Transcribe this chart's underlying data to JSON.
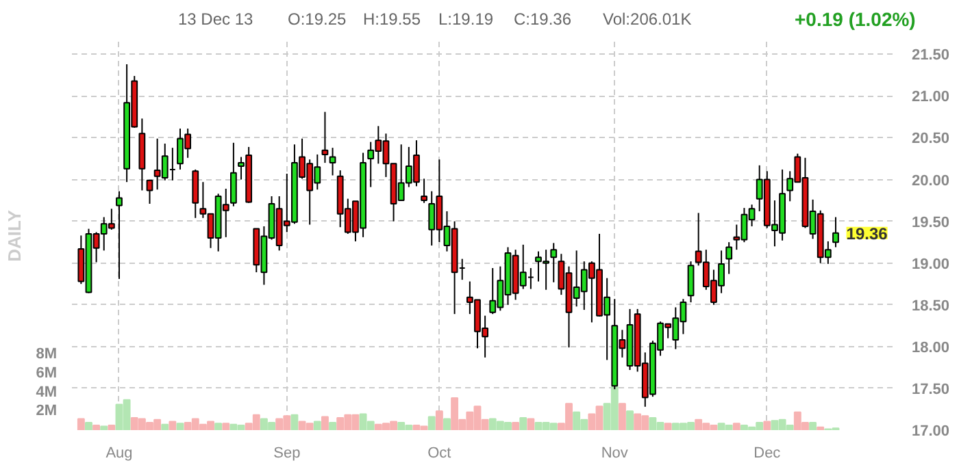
{
  "chart_data": {
    "type": "candlestick",
    "y2label": "DAILY",
    "annotations": [
      "13 Dec 13",
      "O:19.25",
      "H:19.55",
      "L:19.19",
      "C:19.36",
      "Vol:206.01K",
      "+0.19 (1.02%)",
      "19.36"
    ],
    "categories": [
      null,
      null,
      null,
      null,
      null,
      "Aug",
      null,
      null,
      null,
      null,
      null,
      null,
      null,
      null,
      null,
      null,
      null,
      null,
      null,
      null,
      null,
      null,
      null,
      null,
      null,
      null,
      null,
      "Sep",
      null,
      null,
      null,
      null,
      null,
      null,
      null,
      null,
      null,
      null,
      null,
      null,
      null,
      null,
      null,
      null,
      null,
      null,
      null,
      "Oct",
      null,
      null,
      null,
      null,
      null,
      null,
      null,
      null,
      null,
      null,
      null,
      null,
      null,
      null,
      null,
      null,
      null,
      null,
      null,
      null,
      null,
      null,
      "Nov",
      null,
      null,
      null,
      null,
      null,
      null,
      null,
      null,
      null,
      null,
      null,
      null,
      null,
      null,
      null,
      null,
      null,
      null,
      null,
      "Dec",
      null,
      null,
      null,
      null,
      null,
      null,
      null,
      null,
      null
    ],
    "colors": [
      "#dd1111",
      "#22dd22",
      "#dd1111",
      "#22dd22",
      "#dd1111",
      "#22dd22",
      "#22dd22",
      "#dd1111",
      "#dd1111",
      "#dd1111",
      "#dd1111",
      "#22dd22",
      "#000000",
      "#22dd22",
      "#dd1111",
      "#dd1111",
      "#dd1111",
      "#dd1111",
      "#22dd22",
      "#dd1111",
      "#22dd22",
      "#22dd22",
      "#dd1111",
      "#dd1111",
      "#22dd22",
      "#22dd22",
      "#dd1111",
      "#dd1111",
      "#22dd22",
      "#dd1111",
      "#dd1111",
      "#22dd22",
      "#dd1111",
      "#22dd22",
      "#dd1111",
      "#dd1111",
      "#dd1111",
      "#22dd22",
      "#22dd22",
      "#dd1111",
      "#dd1111",
      "#dd1111",
      "#22dd22",
      "#22dd22",
      "#dd1111",
      "#dd1111",
      "#22dd22",
      "#dd1111",
      "#22dd22",
      "#dd1111",
      "#000000",
      "#dd1111",
      "#dd1111",
      "#dd1111",
      "#22dd22",
      "#22dd22",
      "#22dd22",
      "#dd1111",
      "#22dd22",
      "#000000",
      "#22dd22",
      "#22dd22",
      "#22dd22",
      "#dd1111",
      "#dd1111",
      "#22dd22",
      "#22dd22",
      "#dd1111",
      "#dd1111",
      "#22dd22",
      "#22dd22",
      "#dd1111",
      "#22dd22",
      "#dd1111",
      "#dd1111",
      "#22dd22",
      "#22dd22",
      "#dd1111",
      "#22dd22",
      "#22dd22",
      "#22dd22",
      "#dd1111",
      "#dd1111",
      "#dd1111",
      "#22dd22",
      "#22dd22",
      "#dd1111",
      "#22dd22",
      "#22dd22",
      "#22dd22",
      "#dd1111",
      "#22dd22",
      "#22dd22",
      "#22dd22",
      "#dd1111",
      "#dd1111",
      "#22dd22",
      "#dd1111",
      "#22dd22",
      "#22dd22"
    ],
    "ohlc": [
      [
        19.17,
        19.33,
        18.75,
        18.78
      ],
      [
        18.65,
        19.41,
        18.64,
        19.35
      ],
      [
        19.35,
        19.37,
        19.01,
        19.18
      ],
      [
        19.35,
        19.55,
        19.15,
        19.47
      ],
      [
        19.47,
        19.65,
        19.4,
        19.42
      ],
      [
        19.69,
        19.86,
        18.81,
        19.78
      ],
      [
        20.13,
        21.38,
        19.97,
        20.92
      ],
      [
        21.18,
        21.24,
        20.62,
        20.63
      ],
      [
        20.55,
        20.73,
        19.87,
        20.13
      ],
      [
        19.99,
        19.99,
        19.71,
        19.87
      ],
      [
        20.11,
        20.49,
        19.88,
        20.04
      ],
      [
        20.02,
        20.43,
        19.99,
        20.28
      ],
      [
        20.12,
        20.38,
        19.99,
        20.12
      ],
      [
        20.19,
        20.61,
        20.12,
        20.49
      ],
      [
        20.54,
        20.61,
        20.26,
        20.37
      ],
      [
        20.1,
        20.12,
        19.54,
        19.72
      ],
      [
        19.65,
        19.97,
        19.54,
        19.59
      ],
      [
        19.59,
        19.59,
        19.18,
        19.3
      ],
      [
        19.3,
        19.83,
        19.14,
        19.8
      ],
      [
        19.7,
        19.89,
        19.31,
        19.63
      ],
      [
        19.72,
        20.44,
        19.68,
        20.08
      ],
      [
        20.16,
        20.27,
        20.0,
        20.2
      ],
      [
        20.29,
        20.39,
        19.72,
        19.73
      ],
      [
        19.41,
        19.41,
        18.89,
        18.98
      ],
      [
        18.89,
        19.44,
        18.74,
        19.32
      ],
      [
        19.3,
        19.8,
        19.28,
        19.71
      ],
      [
        19.65,
        19.8,
        19.15,
        19.21
      ],
      [
        19.5,
        20.07,
        19.37,
        19.45
      ],
      [
        19.49,
        20.42,
        19.47,
        20.2
      ],
      [
        20.27,
        20.49,
        20.01,
        20.03
      ],
      [
        20.19,
        20.24,
        19.46,
        19.87
      ],
      [
        19.96,
        20.3,
        19.88,
        20.15
      ],
      [
        20.35,
        20.81,
        20.2,
        20.3
      ],
      [
        20.2,
        20.38,
        20.05,
        20.27
      ],
      [
        20.04,
        20.11,
        19.43,
        19.59
      ],
      [
        19.65,
        19.77,
        19.35,
        19.37
      ],
      [
        19.74,
        19.74,
        19.26,
        19.37
      ],
      [
        19.42,
        20.32,
        19.31,
        20.2
      ],
      [
        20.25,
        20.45,
        19.91,
        20.35
      ],
      [
        20.47,
        20.64,
        20.19,
        20.34
      ],
      [
        20.46,
        20.55,
        20.03,
        20.19
      ],
      [
        20.19,
        20.19,
        19.5,
        19.71
      ],
      [
        19.75,
        20.42,
        19.75,
        19.96
      ],
      [
        19.96,
        20.39,
        19.91,
        20.16
      ],
      [
        20.29,
        20.47,
        19.92,
        19.97
      ],
      [
        19.8,
        20.01,
        19.72,
        19.75
      ],
      [
        19.4,
        19.86,
        19.21,
        19.71
      ],
      [
        19.8,
        20.24,
        19.25,
        19.4
      ],
      [
        19.21,
        19.62,
        19.14,
        19.44
      ],
      [
        19.41,
        19.5,
        18.39,
        18.89
      ],
      [
        18.94,
        19.05,
        18.8,
        18.94
      ],
      [
        18.59,
        18.78,
        18.39,
        18.53
      ],
      [
        18.56,
        18.56,
        17.98,
        18.18
      ],
      [
        18.22,
        18.37,
        17.87,
        18.12
      ],
      [
        18.41,
        18.94,
        18.39,
        18.55
      ],
      [
        18.47,
        18.96,
        18.43,
        18.79
      ],
      [
        18.62,
        19.19,
        18.5,
        19.12
      ],
      [
        19.09,
        19.16,
        18.56,
        18.64
      ],
      [
        18.73,
        19.22,
        18.69,
        18.89
      ],
      [
        18.83,
        18.94,
        18.69,
        18.83
      ],
      [
        19.02,
        19.14,
        18.78,
        19.07
      ],
      [
        19.0,
        19.16,
        18.68,
        19.02
      ],
      [
        19.07,
        19.24,
        18.77,
        19.16
      ],
      [
        19.02,
        19.11,
        18.62,
        18.69
      ],
      [
        18.88,
        18.96,
        17.99,
        18.41
      ],
      [
        18.58,
        19.15,
        18.48,
        18.71
      ],
      [
        18.66,
        19.02,
        18.44,
        18.92
      ],
      [
        19.0,
        19.02,
        18.29,
        18.82
      ],
      [
        18.92,
        19.35,
        18.36,
        18.37
      ],
      [
        18.38,
        18.82,
        17.84,
        18.59
      ],
      [
        17.53,
        18.57,
        17.49,
        18.25
      ],
      [
        18.08,
        18.2,
        17.87,
        17.98
      ],
      [
        17.77,
        18.45,
        17.72,
        18.26
      ],
      [
        18.39,
        18.45,
        17.7,
        17.77
      ],
      [
        17.8,
        17.93,
        17.28,
        17.39
      ],
      [
        17.43,
        18.07,
        17.4,
        18.04
      ],
      [
        17.96,
        18.3,
        17.89,
        18.28
      ],
      [
        18.27,
        18.27,
        18.1,
        18.23
      ],
      [
        18.08,
        18.47,
        17.97,
        18.34
      ],
      [
        18.3,
        18.57,
        18.15,
        18.53
      ],
      [
        18.61,
        19.02,
        18.53,
        18.97
      ],
      [
        19.14,
        19.6,
        18.97,
        19.01
      ],
      [
        19.01,
        19.16,
        18.68,
        18.72
      ],
      [
        18.79,
        18.92,
        18.5,
        18.53
      ],
      [
        18.73,
        19.15,
        18.64,
        18.99
      ],
      [
        19.05,
        19.25,
        18.87,
        19.19
      ],
      [
        19.31,
        19.46,
        19.16,
        19.28
      ],
      [
        19.28,
        19.66,
        19.25,
        19.58
      ],
      [
        19.52,
        19.7,
        19.44,
        19.65
      ],
      [
        19.77,
        20.17,
        19.62,
        20.0
      ],
      [
        20.0,
        20.1,
        19.42,
        19.45
      ],
      [
        19.39,
        19.75,
        19.2,
        19.46
      ],
      [
        19.36,
        20.12,
        19.27,
        19.83
      ],
      [
        19.87,
        20.1,
        19.74,
        20.01
      ],
      [
        20.27,
        20.31,
        19.97,
        19.97
      ],
      [
        20.02,
        20.26,
        19.42,
        19.44
      ],
      [
        19.35,
        19.76,
        19.29,
        19.62
      ],
      [
        19.59,
        19.63,
        19.0,
        19.07
      ],
      [
        19.07,
        19.26,
        18.99,
        19.16
      ],
      [
        19.25,
        19.55,
        19.19,
        19.36
      ]
    ],
    "series": [
      {
        "type": "bar",
        "axis": "y2",
        "values": [
          1.2,
          0.8,
          0.5,
          0.4,
          0.5,
          2.7,
          3.2,
          1.3,
          1.2,
          0.8,
          1.1,
          0.6,
          0.9,
          0.7,
          0.8,
          1.2,
          0.6,
          0.9,
          0.7,
          0.7,
          0.6,
          0.5,
          0.7,
          1.6,
          1.2,
          0.8,
          1.2,
          1.5,
          1.6,
          0.9,
          0.7,
          0.9,
          1.4,
          0.8,
          1.3,
          1.6,
          1.6,
          1.7,
          0.9,
          0.6,
          0.7,
          0.9,
          0.8,
          0.5,
          0.5,
          0.4,
          1.4,
          2.0,
          1.2,
          3.4,
          1.1,
          1.9,
          2.5,
          1.1,
          1.2,
          0.9,
          0.8,
          0.8,
          1.3,
          1.2,
          0.8,
          0.8,
          0.7,
          0.7,
          2.8,
          1.9,
          1.1,
          1.7,
          2.5,
          2.8,
          4.6,
          2.8,
          2.0,
          1.7,
          1.5,
          1.3,
          0.8,
          0.7,
          0.7,
          0.7,
          0.8,
          1.1,
          0.7,
          0.5,
          0.7,
          0.5,
          0.7,
          0.5,
          0.3,
          0.8,
          0.9,
          1.0,
          1.1,
          0.5,
          1.9,
          0.8,
          0.8,
          0.3,
          0.1,
          0.2
        ],
        "colors": [
          "#f7b3b3",
          "#b3e6b3",
          "#f7b3b3",
          "#b3e6b3",
          "#f7b3b3",
          "#b3e6b3",
          "#b3e6b3",
          "#f7b3b3",
          "#f7b3b3",
          "#f7b3b3",
          "#f7b3b3",
          "#b3e6b3",
          "#f7b3b3",
          "#b3e6b3",
          "#f7b3b3",
          "#f7b3b3",
          "#f7b3b3",
          "#f7b3b3",
          "#b3e6b3",
          "#f7b3b3",
          "#b3e6b3",
          "#b3e6b3",
          "#f7b3b3",
          "#f7b3b3",
          "#b3e6b3",
          "#b3e6b3",
          "#f7b3b3",
          "#f7b3b3",
          "#b3e6b3",
          "#f7b3b3",
          "#f7b3b3",
          "#b3e6b3",
          "#f7b3b3",
          "#b3e6b3",
          "#f7b3b3",
          "#f7b3b3",
          "#f7b3b3",
          "#b3e6b3",
          "#b3e6b3",
          "#f7b3b3",
          "#f7b3b3",
          "#f7b3b3",
          "#b3e6b3",
          "#b3e6b3",
          "#f7b3b3",
          "#f7b3b3",
          "#b3e6b3",
          "#f7b3b3",
          "#b3e6b3",
          "#f7b3b3",
          "#f7b3b3",
          "#f7b3b3",
          "#f7b3b3",
          "#f7b3b3",
          "#b3e6b3",
          "#b3e6b3",
          "#b3e6b3",
          "#f7b3b3",
          "#b3e6b3",
          "#f7b3b3",
          "#b3e6b3",
          "#b3e6b3",
          "#b3e6b3",
          "#f7b3b3",
          "#f7b3b3",
          "#b3e6b3",
          "#b3e6b3",
          "#f7b3b3",
          "#f7b3b3",
          "#b3e6b3",
          "#b3e6b3",
          "#f7b3b3",
          "#b3e6b3",
          "#f7b3b3",
          "#f7b3b3",
          "#b3e6b3",
          "#b3e6b3",
          "#f7b3b3",
          "#b3e6b3",
          "#b3e6b3",
          "#b3e6b3",
          "#f7b3b3",
          "#f7b3b3",
          "#f7b3b3",
          "#b3e6b3",
          "#b3e6b3",
          "#f7b3b3",
          "#b3e6b3",
          "#b3e6b3",
          "#b3e6b3",
          "#f7b3b3",
          "#b3e6b3",
          "#b3e6b3",
          "#b3e6b3",
          "#f7b3b3",
          "#f7b3b3",
          "#b3e6b3",
          "#f7b3b3",
          "#b3e6b3",
          "#b3e6b3"
        ]
      }
    ],
    "ylim": [
      17.0,
      21.65
    ],
    "yticks": [
      {
        "value": 17,
        "label": "17.00"
      },
      {
        "value": 17.5,
        "label": "17.50"
      },
      {
        "value": 18,
        "label": "18.00"
      },
      {
        "value": 18.5,
        "label": "18.50"
      },
      {
        "value": 19,
        "label": "19.00"
      },
      {
        "value": 19.5,
        "label": "19.50"
      },
      {
        "value": 20,
        "label": "20.00"
      },
      {
        "value": 20.5,
        "label": "20.50"
      },
      {
        "value": 21,
        "label": "21.00"
      },
      {
        "value": 21.5,
        "label": "21.50"
      }
    ],
    "y2lim": [
      0,
      41
    ],
    "y2ticks": [
      {
        "value": 2,
        "label": "2M"
      },
      {
        "value": 4,
        "label": "4M"
      },
      {
        "value": 6,
        "label": "6M"
      },
      {
        "value": 8,
        "label": "8M"
      }
    ],
    "grid": true
  }
}
